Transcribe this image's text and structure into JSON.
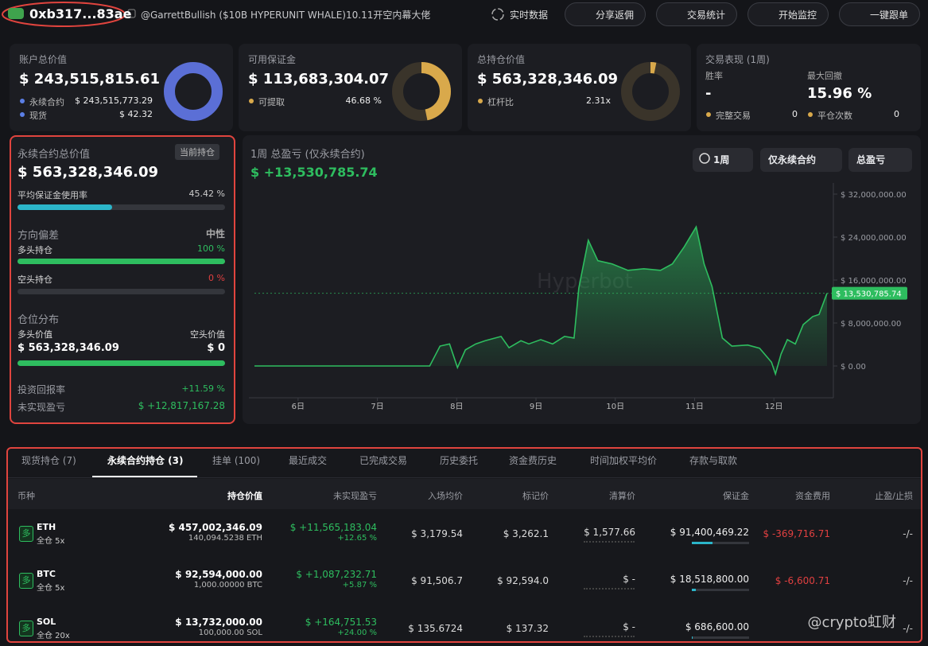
{
  "header": {
    "address": "0xb317...83ae",
    "label": "@GarrettBullish ($10B HYPERUNIT WHALE)10.11开空内幕大佬",
    "live": "实时数据",
    "buttons": [
      "分享返佣",
      "交易统计",
      "开始监控",
      "一键跟单"
    ]
  },
  "cards": {
    "account": {
      "title": "账户总价值",
      "value": "$ 243,515,815.61",
      "rows": [
        {
          "label": "永续合约",
          "value": "$ 243,515,773.29"
        },
        {
          "label": "现货",
          "value": "$ 42.32"
        }
      ]
    },
    "margin": {
      "title": "可用保证金",
      "value": "$ 113,683,304.07",
      "withdrawable_label": "可提取",
      "withdrawable": {
        "value": 46.68,
        "label": "46.68 %"
      }
    },
    "position": {
      "title": "总持仓价值",
      "value": "$ 563,328,346.09",
      "leverage_label": "杠杆比",
      "leverage": "2.31x"
    },
    "performance": {
      "title": "交易表现 (1周)",
      "win_rate_label": "胜率",
      "win_rate": "-",
      "drawdown_label": "最大回撤",
      "drawdown": "15.96 %",
      "trades_label": "完整交易",
      "trades": 0,
      "closes_label": "平仓次数",
      "closes": 0
    }
  },
  "perp": {
    "title": "永续合约总价值",
    "badge": "当前持仓",
    "value": "$ 563,328,346.09",
    "margin_usage_label": "平均保证金使用率",
    "margin_usage": {
      "value": 45.42,
      "label": "45.42 %"
    },
    "bias_title": "方向偏差",
    "bias": "中性",
    "long_label": "多头持仓",
    "long": {
      "value": 100,
      "label": "100 %"
    },
    "short_label": "空头持仓",
    "short": {
      "value": 0,
      "label": "0 %"
    },
    "dist_title": "仓位分布",
    "long_value_label": "多头价值",
    "short_value_label": "空头价值",
    "long_value": "$ 563,328,346.09",
    "short_value": "$ 0",
    "roi_label": "投资回报率",
    "roi": "+11.59 %",
    "upnl_label": "未实现盈亏",
    "upnl": "$ +12,817,167.28"
  },
  "pnl_chart": {
    "type": "line",
    "title": "1周 总盈亏 (仅永续合约)",
    "total": "$ +13,530,785.74",
    "filters": [
      "1周",
      "仅永续合约",
      "总盈亏"
    ],
    "watermark": "Hyperbot",
    "color": "#2ebd5f",
    "x": [
      5.45,
      7.66,
      7.79,
      7.91,
      8.01,
      8.11,
      8.24,
      8.36,
      8.56,
      8.66,
      8.81,
      8.91,
      9.06,
      9.21,
      9.36,
      9.48,
      9.54,
      9.66,
      9.78,
      9.96,
      10.16,
      10.36,
      10.57,
      10.72,
      10.87,
      11.02,
      11.12,
      11.22,
      11.35,
      11.47,
      11.67,
      11.82,
      11.97,
      12.02,
      12.09,
      12.17,
      12.27,
      12.37,
      12.49,
      12.57,
      12.67
    ],
    "values": [
      0,
      0,
      3700000,
      4100000,
      -300000,
      3000000,
      4100000,
      4700000,
      5500000,
      3400000,
      4700000,
      4100000,
      4900000,
      4100000,
      5500000,
      5200000,
      14500000,
      23400000,
      19600000,
      19000000,
      17800000,
      18100000,
      17800000,
      19000000,
      22200000,
      25900000,
      19000000,
      14800000,
      5200000,
      3700000,
      3900000,
      3300000,
      700000,
      -1500000,
      2200000,
      4900000,
      4100000,
      7700000,
      9200000,
      9600000,
      13530785.74
    ],
    "last_label": "$ 13,530,785.74",
    "xlim": [
      5.45,
      12.67
    ],
    "xticks": [
      {
        "value": 6,
        "label": "6日"
      },
      {
        "value": 7,
        "label": "7日"
      },
      {
        "value": 8,
        "label": "8日"
      },
      {
        "value": 9,
        "label": "9日"
      },
      {
        "value": 10,
        "label": "10日"
      },
      {
        "value": 11,
        "label": "11日"
      },
      {
        "value": 12,
        "label": "12日"
      }
    ],
    "ylim": [
      -6000000,
      34000000
    ],
    "yticks": [
      {
        "value": 0,
        "label": "$ 0.00"
      },
      {
        "value": 8000000,
        "label": "$ 8,000,000.00"
      },
      {
        "value": 16000000,
        "label": "$ 16,000,000.00"
      },
      {
        "value": 24000000,
        "label": "$ 24,000,000.00"
      },
      {
        "value": 32000000,
        "label": "$ 32,000,000.00"
      }
    ]
  },
  "positions": {
    "tabs": [
      "现货持仓 (7)",
      "永续合约持仓 (3)",
      "挂单 (100)",
      "最近成交",
      "已完成交易",
      "历史委托",
      "资金费历史",
      "时间加权平均价",
      "存款与取款"
    ],
    "columns": [
      "币种",
      "持仓价值",
      "未实现盈亏",
      "入场均价",
      "标记价",
      "清算价",
      "保证金",
      "资金费用",
      "止盈/止损"
    ],
    "rows": [
      {
        "side": "多",
        "coin": "ETH",
        "mode": "全仓 5x",
        "value": "$ 457,002,346.09",
        "size": "140,094.5238 ETH",
        "upnl": "$ +11,565,183.04",
        "upnl_pct": "+12.65 %",
        "entry": "$ 3,179.54",
        "mark": "$ 3,262.1",
        "liq": "$ 1,577.66",
        "margin": "$ 91,400,469.22",
        "funding": "$ -369,716.71",
        "tpsl": "-/-"
      },
      {
        "side": "多",
        "coin": "BTC",
        "mode": "全仓 5x",
        "value": "$ 92,594,000.00",
        "size": "1,000.00000 BTC",
        "upnl": "$ +1,087,232.71",
        "upnl_pct": "+5.87 %",
        "entry": "$ 91,506.7",
        "mark": "$ 92,594.0",
        "liq": "$ -",
        "margin": "$ 18,518,800.00",
        "funding": "$ -6,600.71",
        "tpsl": "-/-"
      },
      {
        "side": "多",
        "coin": "SOL",
        "mode": "全仓 20x",
        "value": "$ 13,732,000.00",
        "size": "100,000.00 SOL",
        "upnl": "$ +164,751.53",
        "upnl_pct": "+24.00 %",
        "entry": "$ 135.6724",
        "mark": "$ 137.32",
        "liq": "$ -",
        "margin": "$ 686,600.00",
        "tpsl": "-/-"
      }
    ]
  },
  "watermark": "@crypto虹财"
}
